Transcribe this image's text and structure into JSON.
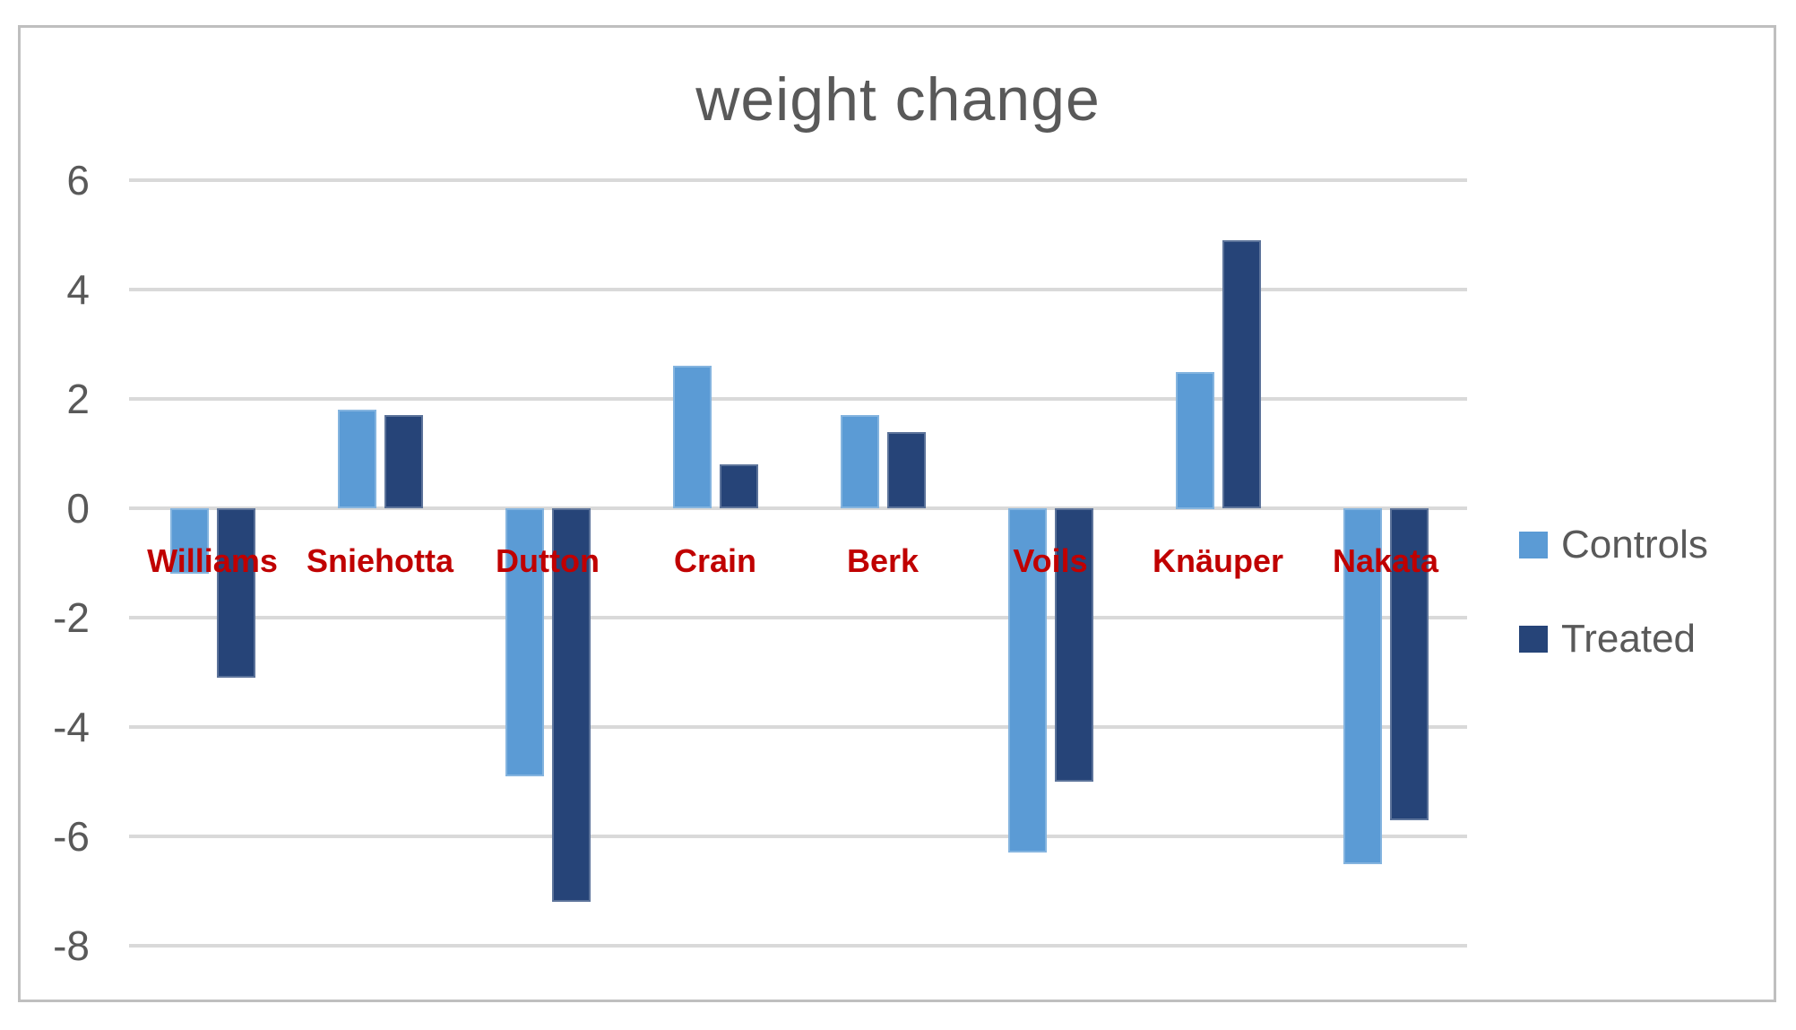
{
  "title": "weight change",
  "colors": {
    "controls": "#5B9BD5",
    "treated": "#264478",
    "gridline": "#D9D9D9",
    "axis_text": "#595959",
    "title_text": "#595959",
    "category_label": "#C00000",
    "frame_border": "#BFBFBF",
    "background": "#FFFFFF"
  },
  "y_axis": {
    "tick_labels": [
      "6",
      "4",
      "2",
      "0",
      "-2",
      "-4",
      "-6",
      "-8"
    ],
    "tick_values": [
      6,
      4,
      2,
      0,
      -2,
      -4,
      -6,
      -8
    ]
  },
  "legend": {
    "items": [
      {
        "label": "Controls",
        "color": "#5B9BD5"
      },
      {
        "label": "Treated",
        "color": "#264478"
      }
    ]
  },
  "chart_data": {
    "type": "bar",
    "title": "weight change",
    "categories": [
      "Williams",
      "Sniehotta",
      "Dutton",
      "Crain",
      "Berk",
      "Voils",
      "Knäuper",
      "Nakata"
    ],
    "series": [
      {
        "name": "Controls",
        "color": "#5B9BD5",
        "values": [
          -1.2,
          1.8,
          -4.9,
          2.6,
          1.7,
          -6.3,
          2.5,
          -6.5
        ]
      },
      {
        "name": "Treated",
        "color": "#264478",
        "values": [
          -3.1,
          1.7,
          -7.2,
          0.8,
          1.4,
          -5.0,
          4.9,
          -5.7
        ]
      }
    ],
    "xlabel": "",
    "ylabel": "",
    "ylim": [
      -8,
      6
    ],
    "grid": true,
    "gridline_step": 2,
    "legend_position": "right",
    "category_label_position": "between 0 and -2, overlapping bars",
    "category_label_color": "#C00000"
  }
}
